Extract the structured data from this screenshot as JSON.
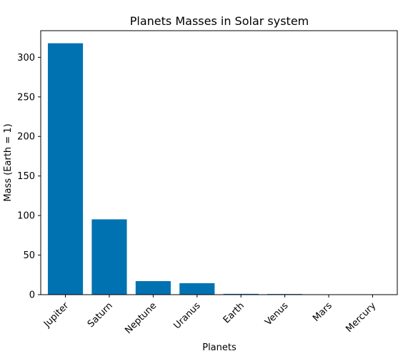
{
  "chart_data": {
    "type": "bar",
    "title": "Planets Masses in Solar system",
    "xlabel": "Planets",
    "ylabel": "Mass (Earth = 1)",
    "categories": [
      "Jupiter",
      "Saturn",
      "Neptune",
      "Uranus",
      "Earth",
      "Venus",
      "Mars",
      "Mercury"
    ],
    "values": [
      317.8,
      95.2,
      17.1,
      14.5,
      1.0,
      0.815,
      0.107,
      0.055
    ],
    "ylim": [
      0,
      333.69
    ],
    "yticks": [
      0,
      50,
      100,
      150,
      200,
      250,
      300
    ],
    "bar_color": "#0072b2",
    "grid": false,
    "legend": "none"
  }
}
